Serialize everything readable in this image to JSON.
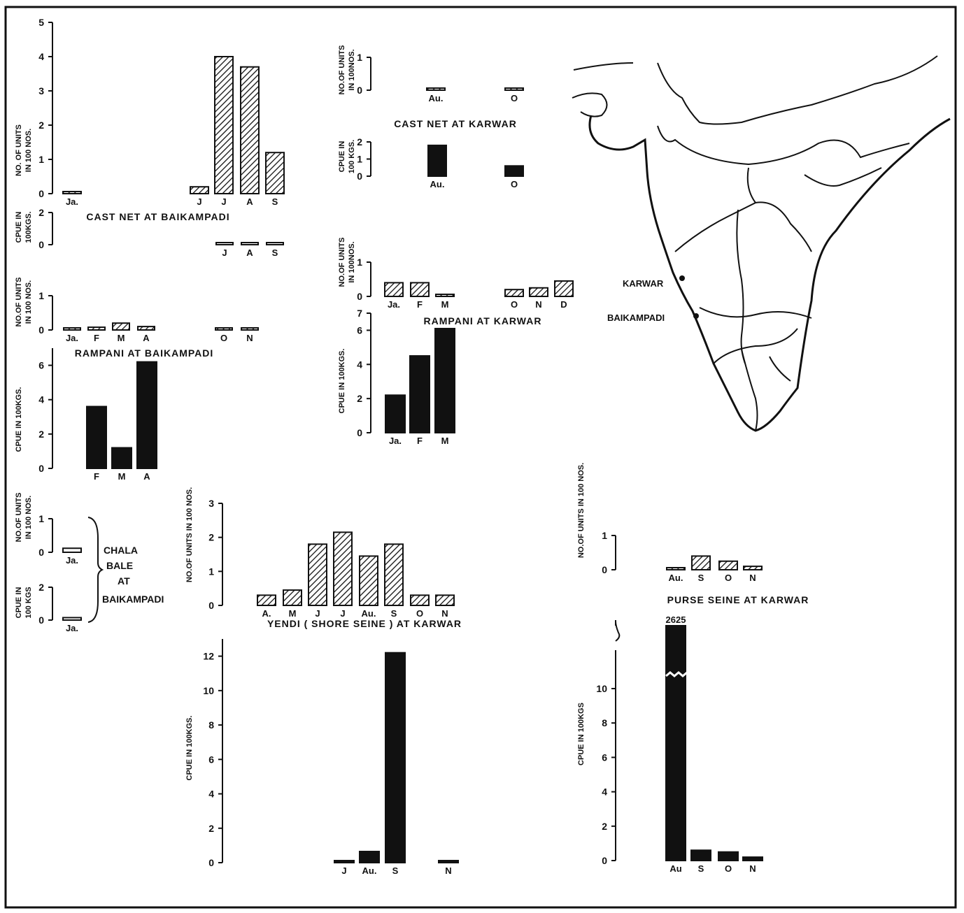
{
  "chart_data": [
    {
      "id": "cast_baik_units",
      "type": "bar",
      "ylabel_lines": [
        "NO. OF UNITS",
        "IN 100 NOS."
      ],
      "ylim": [
        0,
        5
      ],
      "yticks": [
        0,
        1,
        2,
        3,
        4,
        5
      ],
      "categories": [
        "Ja.",
        "J",
        "J",
        "A",
        "S"
      ],
      "values": [
        0.05,
        0.2,
        4.0,
        3.7,
        1.2
      ],
      "fill": "hatch"
    },
    {
      "id": "cast_baik_cpue",
      "type": "bar",
      "title": "CAST NET AT BAIKAMPADI",
      "ylabel_lines": [
        "CPUE IN",
        "100KGS."
      ],
      "ylim": [
        0,
        2
      ],
      "yticks": [
        0,
        2
      ],
      "categories": [
        "J",
        "A",
        "S"
      ],
      "values": [
        0.12,
        0.05,
        0.05
      ],
      "fill": "open"
    },
    {
      "id": "ramp_baik_units",
      "type": "bar",
      "ylabel_lines": [
        "NO.OF UNITS",
        "IN 100 NOS."
      ],
      "ylim": [
        0,
        1
      ],
      "yticks": [
        0,
        1
      ],
      "categories": [
        "Ja.",
        "F",
        "M",
        "A",
        "O",
        "N"
      ],
      "values": [
        0.05,
        0.08,
        0.2,
        0.1,
        0.05,
        0.03
      ],
      "fill": "hatch"
    },
    {
      "id": "ramp_baik_cpue",
      "type": "bar",
      "title": "RAMPANI AT BAIKAMPADI",
      "ylabel_lines": [
        "CPUE IN 100KGS."
      ],
      "ylim": [
        0,
        7
      ],
      "yticks": [
        0,
        2,
        4,
        6
      ],
      "categories": [
        "F",
        "M",
        "A"
      ],
      "values": [
        3.6,
        1.2,
        6.2
      ],
      "fill": "solid"
    },
    {
      "id": "chala_units",
      "type": "bar",
      "ylabel_lines": [
        "NO.OF UNITS",
        "IN 100 NOS."
      ],
      "ylim": [
        0,
        1
      ],
      "yticks": [
        0,
        1
      ],
      "categories": [
        "Ja."
      ],
      "values": [
        0.12
      ],
      "fill": "open"
    },
    {
      "id": "chala_cpue",
      "type": "bar",
      "ylabel_lines": [
        "CPUE IN",
        "100 KGS"
      ],
      "ylim": [
        0,
        2
      ],
      "yticks": [
        0,
        2
      ],
      "categories": [
        "Ja."
      ],
      "values": [
        0.15
      ],
      "fill": "open"
    },
    {
      "id": "cast_karwar_units",
      "type": "bar",
      "ylabel_lines": [
        "NO.OF UNITS",
        "IN 100NOS."
      ],
      "ylim": [
        0,
        1
      ],
      "yticks": [
        0,
        1
      ],
      "categories": [
        "Au.",
        "O"
      ],
      "values": [
        0.02,
        0.02
      ],
      "fill": "hatch"
    },
    {
      "id": "cast_karwar_cpue",
      "type": "bar",
      "title": "CAST NET AT KARWAR",
      "ylabel_lines": [
        "CPUE IN",
        "100 KGS."
      ],
      "ylim": [
        0,
        2
      ],
      "yticks": [
        0,
        1,
        2
      ],
      "categories": [
        "Au.",
        "O"
      ],
      "values": [
        1.8,
        0.6
      ],
      "fill": "solid"
    },
    {
      "id": "ramp_karwar_units",
      "type": "bar",
      "ylabel_lines": [
        "NO.OF UNITS",
        "IN 100NOS."
      ],
      "ylim": [
        0,
        1
      ],
      "yticks": [
        0,
        1
      ],
      "categories": [
        "Ja.",
        "F",
        "M",
        "O",
        "N",
        "D"
      ],
      "values": [
        0.4,
        0.4,
        0.05,
        0.2,
        0.25,
        0.45
      ],
      "fill": "hatch"
    },
    {
      "id": "ramp_karwar_cpue",
      "type": "bar",
      "title": "RAMPANI AT KARWAR",
      "ylabel_lines": [
        "CPUE IN 100KGS."
      ],
      "ylim": [
        0,
        7
      ],
      "yticks": [
        0,
        2,
        4,
        6,
        7
      ],
      "categories": [
        "Ja.",
        "F",
        "M"
      ],
      "values": [
        2.2,
        4.5,
        6.1
      ],
      "fill": "solid"
    },
    {
      "id": "yendi_units",
      "type": "bar",
      "title": "YENDI ( SHORE SEINE ) AT KARWAR",
      "ylabel_lines": [
        "NO.OF UNITS IN 100 NOS."
      ],
      "ylim": [
        0,
        3
      ],
      "yticks": [
        0,
        1,
        2,
        3
      ],
      "categories": [
        "A.",
        "M",
        "J",
        "J",
        "Au.",
        "S",
        "O",
        "N"
      ],
      "values": [
        0.3,
        0.45,
        1.8,
        2.15,
        1.45,
        1.8,
        0.3,
        0.3
      ],
      "fill": "hatch"
    },
    {
      "id": "yendi_cpue",
      "type": "bar",
      "ylabel_lines": [
        "CPUE IN 100KGS."
      ],
      "ylim": [
        0,
        13
      ],
      "yticks": [
        0,
        2,
        4,
        6,
        8,
        10,
        12
      ],
      "categories": [
        "J",
        "Au.",
        "S",
        "N"
      ],
      "values": [
        0.1,
        0.65,
        12.2,
        0.1
      ],
      "fill": "solid"
    },
    {
      "id": "purse_units",
      "type": "bar",
      "title": "PURSE SEINE AT KARWAR",
      "ylabel_lines": [
        "NO.OF UNITS IN 100 NOS."
      ],
      "ylim": [
        0,
        1
      ],
      "yticks": [
        0,
        1
      ],
      "categories": [
        "Au.",
        "S",
        "O",
        "N"
      ],
      "values": [
        0.05,
        0.4,
        0.25,
        0.1
      ],
      "fill": "hatch"
    },
    {
      "id": "purse_cpue",
      "type": "bar",
      "ylabel_lines": [
        "CPUE IN 100KGS"
      ],
      "ylim": [
        0,
        10
      ],
      "yticks": [
        0,
        2,
        4,
        6,
        8,
        10
      ],
      "axis_break": true,
      "categories": [
        "Au",
        "S",
        "O",
        "N"
      ],
      "values": [
        2625,
        0.6,
        0.5,
        0.2
      ],
      "value_labels": [
        "2625",
        "",
        "",
        ""
      ],
      "fill": "solid"
    }
  ],
  "side_label": [
    "CHALA",
    "BALE",
    "AT",
    "BAIKAMPADI"
  ],
  "map": {
    "places": [
      "KARWAR",
      "BAIKAMPADI"
    ]
  }
}
